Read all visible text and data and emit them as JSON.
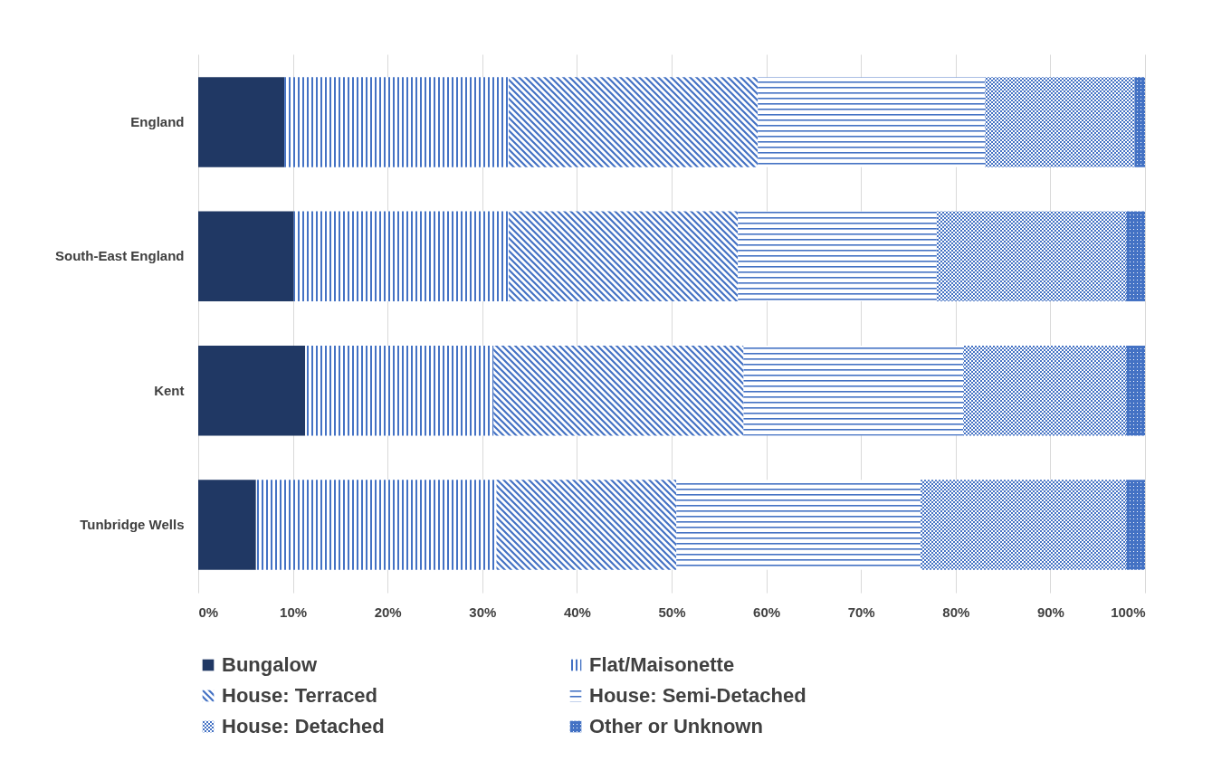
{
  "chart_data": {
    "type": "bar",
    "orientation": "horizontal",
    "stacked": true,
    "categories": [
      "England",
      "South-East England",
      "Kent",
      "Tunbridge Wells"
    ],
    "series": [
      {
        "name": "Bungalow",
        "color": "#203864",
        "values": [
          9.1,
          10.1,
          11.3,
          6.1
        ]
      },
      {
        "name": "Flat/Maisonette",
        "color": "#4472c4",
        "values": [
          23.7,
          22.7,
          19.9,
          25.4
        ]
      },
      {
        "name": "House: Terraced",
        "color": "#4472c4",
        "values": [
          26.3,
          24.2,
          26.4,
          19.0
        ]
      },
      {
        "name": "House: Semi-Detached",
        "color": "#4472c4",
        "values": [
          24.0,
          21.0,
          23.2,
          25.8
        ]
      },
      {
        "name": "House: Detached",
        "color": "#4472c4",
        "values": [
          15.8,
          20.0,
          17.2,
          21.7
        ]
      },
      {
        "name": "Other or Unknown",
        "color": "#4472c4",
        "values": [
          1.1,
          2.0,
          2.0,
          2.0
        ]
      }
    ],
    "xlim": [
      0,
      100
    ],
    "xticks": [
      {
        "value": 0,
        "label": "0%"
      },
      {
        "value": 10,
        "label": "10%"
      },
      {
        "value": 20,
        "label": "20%"
      },
      {
        "value": 30,
        "label": "30%"
      },
      {
        "value": 40,
        "label": "40%"
      },
      {
        "value": 50,
        "label": "50%"
      },
      {
        "value": 60,
        "label": "60%"
      },
      {
        "value": 70,
        "label": "70%"
      },
      {
        "value": 80,
        "label": "80%"
      },
      {
        "value": 90,
        "label": "90%"
      },
      {
        "value": 100,
        "label": "100%"
      }
    ],
    "grid": "x",
    "legend": "bottom"
  }
}
